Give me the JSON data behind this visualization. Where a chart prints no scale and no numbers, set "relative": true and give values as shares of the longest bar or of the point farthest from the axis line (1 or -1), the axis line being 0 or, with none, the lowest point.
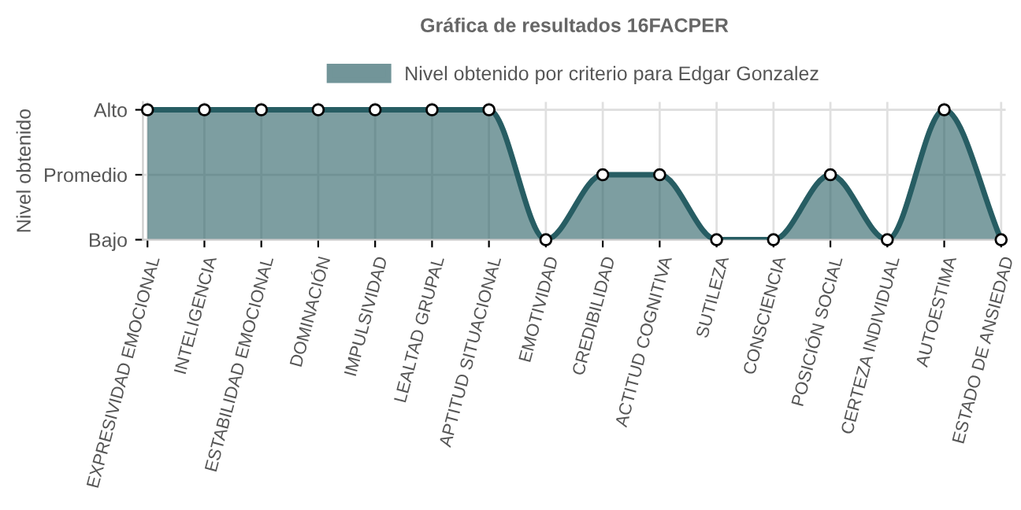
{
  "chart_data": {
    "type": "area",
    "title": "Gráfica de resultados 16FACPER",
    "ylabel": "Nivel obtenido",
    "categories": [
      "EXPRESIVIDAD EMOCIONAL",
      "INTELIGENCIA",
      "ESTABILIDAD EMOCIONAL",
      "DOMINACIÓN",
      "IMPULSIVIDAD",
      "LEALTAD GRUPAL",
      "APTITUD SITUACIONAL",
      "EMOTIVIDAD",
      "CREDIBILIDAD",
      "ACTITUD COGNITIVA",
      "SUTILEZA",
      "CONSCIENCIA",
      "POSICIÓN SOCIAL",
      "CERTEZA INDIVIDUAL",
      "AUTOESTIMA",
      "ESTADO DE ANSIEDAD"
    ],
    "series": [
      {
        "name": "Nivel obtenido por criterio para Edgar Gonzalez",
        "color": "#275d63",
        "values": [
          1,
          1,
          1,
          1,
          1,
          1,
          1,
          0,
          0.5,
          0.5,
          0,
          0,
          0.5,
          0,
          1,
          0
        ]
      }
    ],
    "relative": true,
    "annotations": [
      "Alto",
      "Promedio",
      "Bajo"
    ],
    "grid": true,
    "legend": "top",
    "marker": "circle",
    "line_style": "solid"
  }
}
